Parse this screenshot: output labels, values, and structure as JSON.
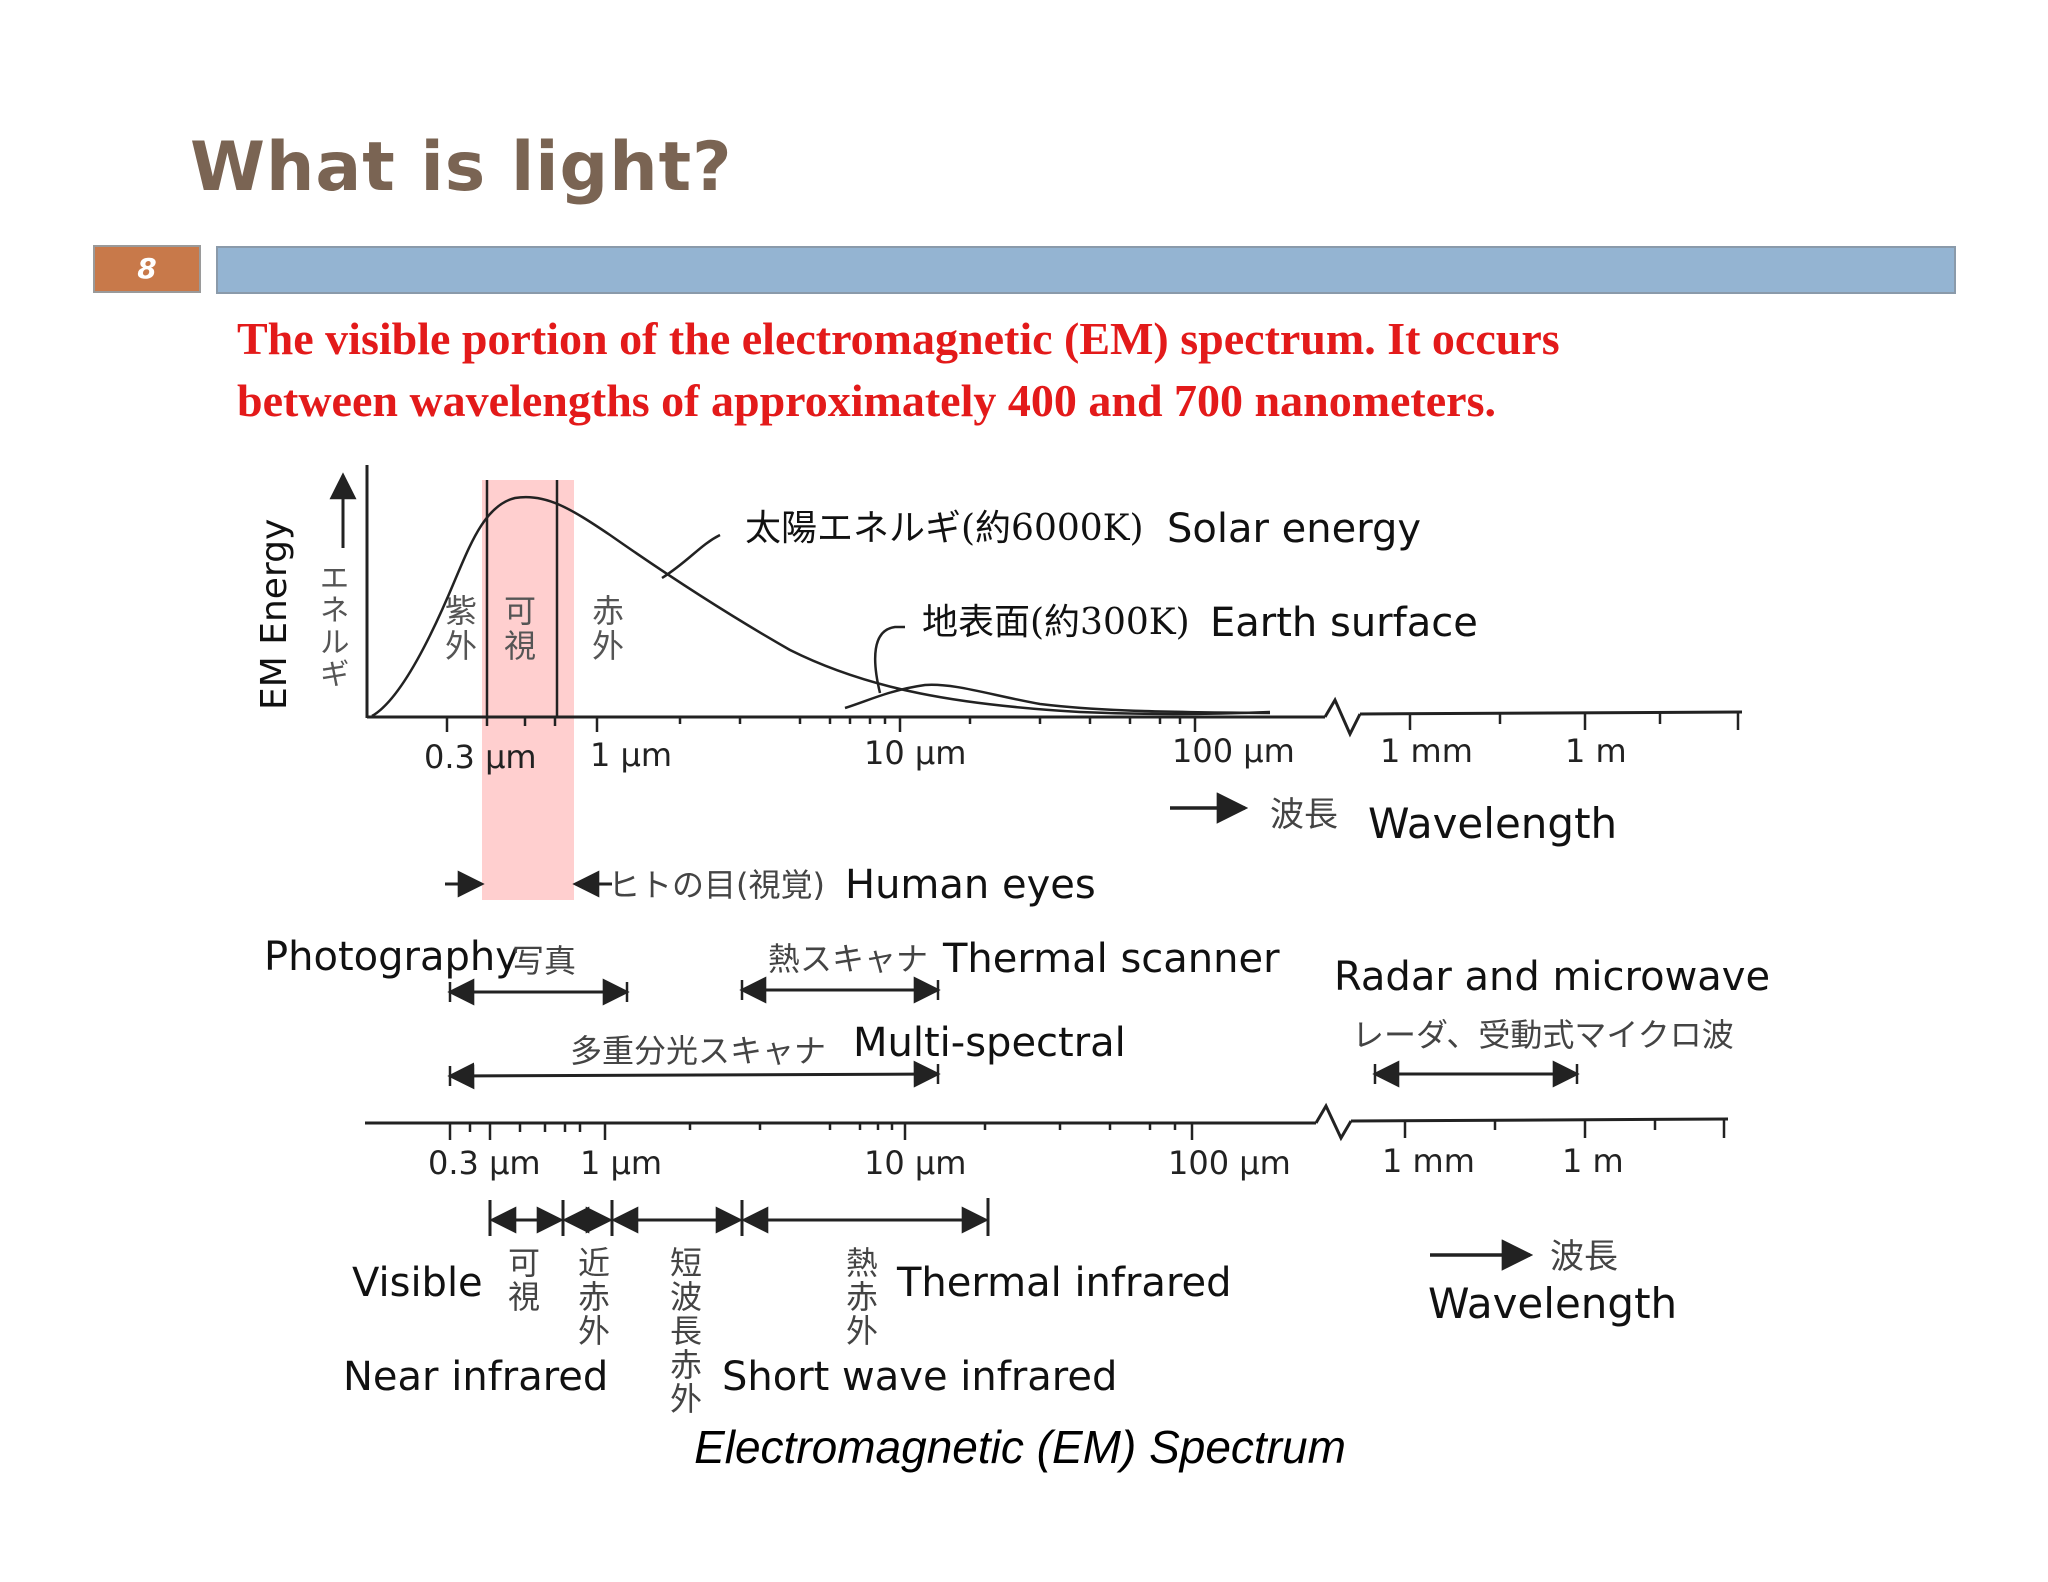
{
  "slide": {
    "title": "What is light?",
    "number": "8",
    "subtitle_line1": "The visible portion of the electromagnetic (EM) spectrum. It occurs",
    "subtitle_line2": "between wavelengths of approximately 400 and 700 nanometers."
  },
  "diagram": {
    "y_axis": {
      "en": "EM Energy",
      "jp": "エネルギ"
    },
    "band_labels_jp": {
      "uv": [
        "紫",
        "外"
      ],
      "visible": [
        "可",
        "視"
      ],
      "ir": [
        "赤",
        "外"
      ]
    },
    "curves": {
      "solar": {
        "jp": "太陽エネルギ(約6000K)",
        "en": "Solar energy"
      },
      "earth": {
        "jp": "地表面(約300K)",
        "en": "Earth surface"
      }
    },
    "ticks_top": [
      "0.3 μm",
      "1 μm",
      "10 μm",
      "100 μm",
      "1 mm",
      "1 m"
    ],
    "wavelength_top": {
      "jp": "波長",
      "en": "Wavelength"
    },
    "human_eyes": {
      "jp": "ヒトの目(視覚)",
      "en": "Human eyes"
    },
    "photography": {
      "en": "Photography",
      "jp": "写真"
    },
    "thermal_scanner": {
      "jp": "熱スキャナ",
      "en": "Thermal scanner"
    },
    "multispectral": {
      "jp": "多重分光スキャナ",
      "en": "Multi-spectral"
    },
    "radar": {
      "en": "Radar and microwave",
      "jp": "レーダ、受動式マイクロ波"
    },
    "ticks_bottom": [
      "0.3 μm",
      "1 μm",
      "10 μm",
      "100 μm",
      "1 mm",
      "1 m"
    ],
    "regions_jp": {
      "visible": [
        "可",
        "視"
      ],
      "near_ir": [
        "近",
        "赤",
        "外"
      ],
      "swir": [
        "短",
        "波",
        "長",
        "赤",
        "外"
      ],
      "thermal": [
        "熱",
        "赤",
        "外"
      ]
    },
    "region_labels": {
      "visible": "Visible",
      "near_ir": "Near infrared",
      "swir": "Short wave infrared",
      "thermal": "Thermal infrared"
    },
    "wavelength_bottom": {
      "jp": "波長",
      "en": "Wavelength"
    },
    "caption": "Electromagnetic (EM) Spectrum",
    "colors": {
      "visible_band": "#ffcfcf",
      "line": "#222222"
    }
  }
}
